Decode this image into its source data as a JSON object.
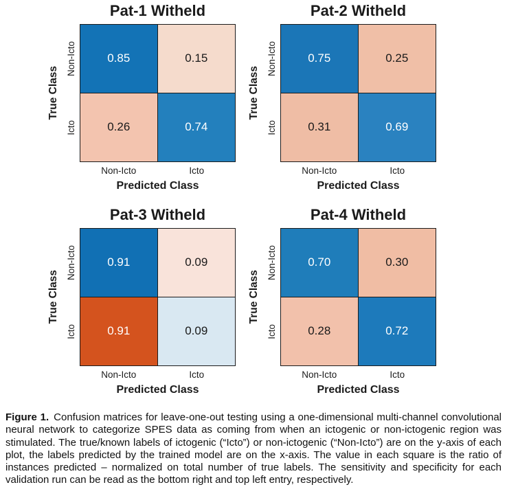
{
  "figure": {
    "y_axis_label": "True Class",
    "x_axis_label": "Predicted Class",
    "row_labels": [
      "Non-Icto",
      "Icto"
    ],
    "col_labels": [
      "Non-Icto",
      "Icto"
    ],
    "border_color": "#1a1a1a"
  },
  "plots": [
    {
      "title": "Pat-1 Witheld",
      "cells": [
        {
          "value": "0.85",
          "bg": "#1373b6",
          "fg": "#ffffff"
        },
        {
          "value": "0.15",
          "bg": "#f5dbcc",
          "fg": "#1a1a1a"
        },
        {
          "value": "0.26",
          "bg": "#f3c4af",
          "fg": "#1a1a1a"
        },
        {
          "value": "0.74",
          "bg": "#2380bd",
          "fg": "#ffffff"
        }
      ]
    },
    {
      "title": "Pat-2 Witheld",
      "cells": [
        {
          "value": "0.75",
          "bg": "#1b76b7",
          "fg": "#ffffff"
        },
        {
          "value": "0.25",
          "bg": "#f0bfa7",
          "fg": "#1a1a1a"
        },
        {
          "value": "0.31",
          "bg": "#efbda5",
          "fg": "#1a1a1a"
        },
        {
          "value": "0.69",
          "bg": "#2a82c0",
          "fg": "#ffffff"
        }
      ]
    },
    {
      "title": "Pat-3 Witheld",
      "cells": [
        {
          "value": "0.91",
          "bg": "#1170b4",
          "fg": "#ffffff"
        },
        {
          "value": "0.09",
          "bg": "#f9e3da",
          "fg": "#1a1a1a"
        },
        {
          "value": "0.91",
          "bg": "#d4531e",
          "fg": "#ffffff"
        },
        {
          "value": "0.09",
          "bg": "#d9e8f2",
          "fg": "#1a1a1a"
        }
      ]
    },
    {
      "title": "Pat-4 Witheld",
      "cells": [
        {
          "value": "0.70",
          "bg": "#1f7dba",
          "fg": "#ffffff"
        },
        {
          "value": "0.30",
          "bg": "#f0bda4",
          "fg": "#1a1a1a"
        },
        {
          "value": "0.28",
          "bg": "#f2c1ab",
          "fg": "#1a1a1a"
        },
        {
          "value": "0.72",
          "bg": "#1d7abb",
          "fg": "#ffffff"
        }
      ]
    }
  ],
  "caption": {
    "label": "Figure 1.",
    "text": "Confusion matrices for leave-one-out testing using a one-dimensional multi-channel convolutional neural network to categorize SPES data as coming from when an ictogenic or non-ictogenic region was stimulated. The true/known labels of ictogenic (“Icto”) or non-ictogenic (“Non-Icto”) are on the y-axis of each plot, the labels predicted by the trained model are on the x-axis. The value in each square is the ratio of instances predicted – normalized on total number of true labels. The sensitivity and specificity for each validation run can be read as the bottom right and top left entry, respectively."
  },
  "chart_data": [
    {
      "type": "heatmap",
      "title": "Pat-1 Witheld",
      "xlabel": "Predicted Class",
      "ylabel": "True Class",
      "x_categories": [
        "Non-Icto",
        "Icto"
      ],
      "y_categories": [
        "Non-Icto",
        "Icto"
      ],
      "values": [
        [
          0.85,
          0.15
        ],
        [
          0.26,
          0.74
        ]
      ],
      "legend_position": "none",
      "grid": false
    },
    {
      "type": "heatmap",
      "title": "Pat-2 Witheld",
      "xlabel": "Predicted Class",
      "ylabel": "True Class",
      "x_categories": [
        "Non-Icto",
        "Icto"
      ],
      "y_categories": [
        "Non-Icto",
        "Icto"
      ],
      "values": [
        [
          0.75,
          0.25
        ],
        [
          0.31,
          0.69
        ]
      ],
      "legend_position": "none",
      "grid": false
    },
    {
      "type": "heatmap",
      "title": "Pat-3 Witheld",
      "xlabel": "Predicted Class",
      "ylabel": "True Class",
      "x_categories": [
        "Non-Icto",
        "Icto"
      ],
      "y_categories": [
        "Non-Icto",
        "Icto"
      ],
      "values": [
        [
          0.91,
          0.09
        ],
        [
          0.91,
          0.09
        ]
      ],
      "legend_position": "none",
      "grid": false
    },
    {
      "type": "heatmap",
      "title": "Pat-4 Witheld",
      "xlabel": "Predicted Class",
      "ylabel": "True Class",
      "x_categories": [
        "Non-Icto",
        "Icto"
      ],
      "y_categories": [
        "Non-Icto",
        "Icto"
      ],
      "values": [
        [
          0.7,
          0.3
        ],
        [
          0.28,
          0.72
        ]
      ],
      "legend_position": "none",
      "grid": false
    }
  ]
}
